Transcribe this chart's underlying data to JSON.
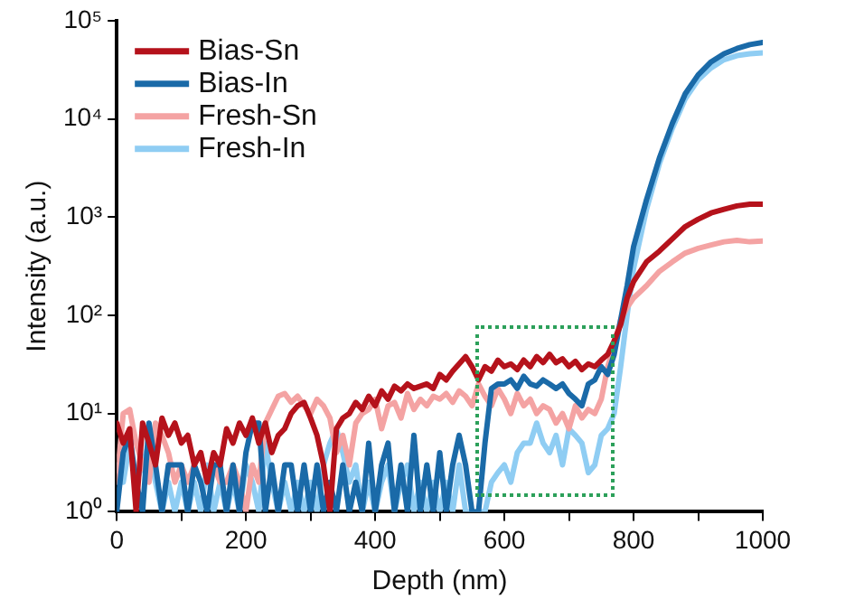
{
  "chart_data": {
    "type": "line",
    "xlabel": "Depth (nm)",
    "ylabel": "Intensity (a.u.)",
    "log": "y",
    "x": [
      0,
      10,
      20,
      30,
      40,
      50,
      60,
      70,
      80,
      90,
      100,
      110,
      120,
      130,
      140,
      150,
      160,
      170,
      180,
      190,
      200,
      210,
      220,
      230,
      240,
      250,
      260,
      270,
      280,
      290,
      300,
      310,
      320,
      330,
      340,
      350,
      360,
      370,
      380,
      390,
      400,
      410,
      420,
      430,
      440,
      450,
      460,
      470,
      480,
      490,
      500,
      510,
      520,
      530,
      540,
      550,
      560,
      570,
      580,
      590,
      600,
      610,
      620,
      630,
      640,
      650,
      660,
      670,
      680,
      690,
      700,
      710,
      720,
      730,
      740,
      750,
      760,
      770,
      780,
      790,
      800,
      820,
      840,
      860,
      880,
      900,
      920,
      940,
      960,
      980,
      1000
    ],
    "xlim": [
      0,
      1000
    ],
    "xticks": [
      0,
      {
        "value": 100,
        "label": null
      },
      200,
      {
        "value": 300,
        "label": null
      },
      400,
      {
        "value": 500,
        "label": null
      },
      600,
      {
        "value": 700,
        "label": null
      },
      800,
      {
        "value": 900,
        "label": null
      },
      1000
    ],
    "ylim": [
      1,
      100000
    ],
    "yticks": [
      {
        "value": 1,
        "label": "10⁰"
      },
      {
        "value": 10,
        "label": "10¹"
      },
      {
        "value": 100,
        "label": "10²"
      },
      {
        "value": 1000,
        "label": "10³"
      },
      {
        "value": 10000,
        "label": "10⁴"
      },
      {
        "value": 100000,
        "label": "10⁵"
      }
    ],
    "legend": "top left",
    "grid": false,
    "marker": "none",
    "line_style": "solid",
    "series": [
      {
        "name": "Bias-Sn",
        "color": "#b5121b",
        "values": [
          8,
          5,
          7,
          1,
          8,
          5,
          3,
          9,
          6,
          8,
          5,
          6,
          3,
          4,
          2,
          4,
          3,
          7,
          5,
          8,
          6,
          9,
          5,
          8,
          4,
          6,
          7,
          10,
          12,
          13,
          9,
          6,
          3,
          1,
          7,
          9,
          10,
          13,
          11,
          15,
          12,
          17,
          14,
          19,
          17,
          20,
          18,
          19,
          20,
          18,
          25,
          22,
          27,
          32,
          38,
          30,
          22,
          30,
          27,
          35,
          30,
          32,
          28,
          35,
          30,
          38,
          33,
          40,
          33,
          36,
          30,
          34,
          28,
          32,
          30,
          35,
          40,
          55,
          80,
          150,
          220,
          350,
          450,
          600,
          800,
          950,
          1100,
          1200,
          1300,
          1350,
          1350
        ]
      },
      {
        "name": "Bias-In",
        "color": "#1a6aa8",
        "values": [
          1,
          4,
          6,
          2,
          1,
          8,
          3,
          1,
          3,
          3,
          3,
          1,
          3,
          2,
          1,
          3,
          3,
          1,
          3,
          1,
          4,
          8,
          8,
          1,
          3,
          1,
          3,
          3,
          1,
          3,
          1,
          3,
          1,
          2,
          1,
          3,
          1,
          2,
          1,
          5,
          1,
          3,
          5,
          1,
          3,
          1,
          6,
          1,
          3,
          1,
          4,
          1,
          3,
          6,
          3,
          1,
          1,
          5,
          18,
          20,
          20,
          22,
          18,
          24,
          20,
          19,
          22,
          20,
          18,
          20,
          16,
          14,
          12,
          20,
          22,
          30,
          25,
          40,
          90,
          200,
          500,
          1500,
          4000,
          9000,
          18000,
          28000,
          38000,
          46000,
          52000,
          57000,
          60000
        ]
      },
      {
        "name": "Fresh-Sn",
        "color": "#f4a3a3",
        "values": [
          2,
          10,
          11,
          5,
          3,
          2,
          8,
          6,
          4,
          2,
          3,
          2,
          3,
          4,
          2,
          3,
          2,
          2,
          3,
          2,
          1,
          3,
          2,
          8,
          11,
          15,
          16,
          13,
          15,
          12,
          10,
          14,
          12,
          9,
          4,
          6,
          3,
          8,
          10,
          11,
          14,
          7,
          12,
          13,
          9,
          16,
          11,
          14,
          12,
          15,
          14,
          16,
          13,
          17,
          15,
          12,
          20,
          15,
          12,
          18,
          14,
          10,
          16,
          12,
          14,
          10,
          12,
          11,
          8,
          10,
          7,
          12,
          9,
          11,
          10,
          14,
          30,
          50,
          90,
          120,
          150,
          200,
          280,
          350,
          430,
          480,
          520,
          560,
          580,
          560,
          570
        ]
      },
      {
        "name": "Fresh-In",
        "color": "#8fcdf3",
        "values": [
          3,
          2,
          5,
          2,
          3,
          5,
          2,
          1,
          2,
          1,
          2,
          1,
          2,
          1,
          3,
          1,
          2,
          1,
          2,
          1,
          3,
          2,
          1,
          5,
          2,
          1,
          2,
          1,
          2,
          1,
          2,
          1,
          3,
          5,
          7,
          4,
          2,
          3,
          1,
          2,
          1,
          2,
          3,
          1,
          2,
          3,
          1,
          2,
          1,
          2,
          1,
          2,
          1,
          3,
          1,
          1,
          1,
          1,
          2,
          2.5,
          3,
          2,
          4,
          5,
          5,
          8,
          5,
          4,
          6,
          3,
          7,
          6,
          5,
          2.5,
          3,
          6,
          7,
          10,
          30,
          100,
          300,
          1200,
          3500,
          8000,
          16000,
          25000,
          33000,
          40000,
          44000,
          46000,
          47000
        ]
      }
    ]
  }
}
